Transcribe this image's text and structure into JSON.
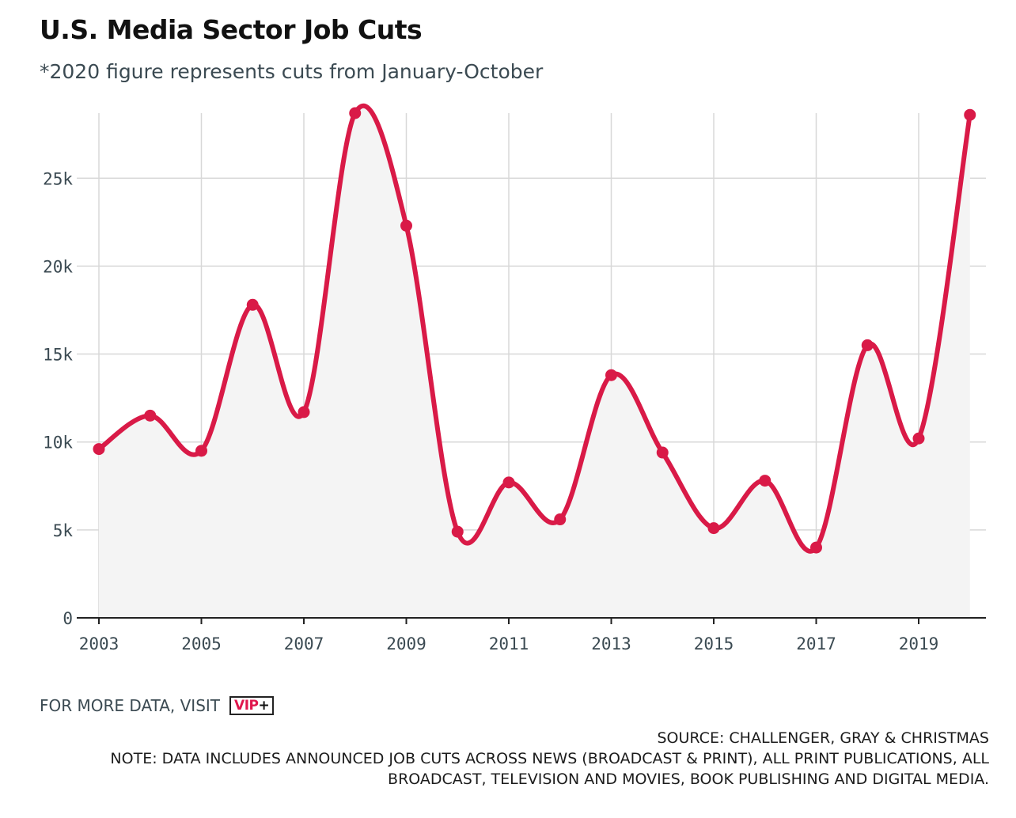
{
  "title": "U.S. Media Sector Job Cuts",
  "subtitle": "*2020 figure represents cuts from January-October",
  "more_data_label": "FOR MORE DATA, VISIT",
  "logo": {
    "text": "VIP",
    "plus": "+"
  },
  "source": "SOURCE: CHALLENGER, GRAY & CHRISTMAS",
  "note_line1": "NOTE: DATA INCLUDES ANNOUNCED JOB CUTS ACROSS NEWS (BROADCAST & PRINT), ALL PRINT PUBLICATIONS, ALL",
  "note_line2": "BROADCAST, TELEVISION AND MOVIES, BOOK PUBLISHING AND DIGITAL MEDIA.",
  "colors": {
    "line": "#d91a47",
    "area": "#f4f4f4",
    "grid": "#d8d8d8",
    "axis": "#222222"
  },
  "chart_data": {
    "type": "line",
    "x": [
      2003,
      2004,
      2005,
      2006,
      2007,
      2008,
      2009,
      2010,
      2011,
      2012,
      2013,
      2014,
      2015,
      2016,
      2017,
      2018,
      2019,
      2020
    ],
    "series": [
      {
        "values": [
          9600,
          11500,
          9500,
          17800,
          11700,
          28700,
          22300,
          4900,
          7700,
          5600,
          13800,
          9400,
          5100,
          7800,
          4000,
          15500,
          10200,
          28600
        ]
      }
    ],
    "xlim": [
      2003,
      2020.3
    ],
    "ylim": [
      0,
      28700
    ],
    "x_ticks": [
      2003,
      2005,
      2007,
      2009,
      2011,
      2013,
      2015,
      2017,
      2019
    ],
    "x_tick_labels": [
      "2003",
      "2005",
      "2007",
      "2009",
      "2011",
      "2013",
      "2015",
      "2017",
      "2019"
    ],
    "y_ticks": [
      0,
      5000,
      10000,
      15000,
      20000,
      25000
    ],
    "y_tick_labels": [
      "0",
      "5k",
      "10k",
      "15k",
      "20k",
      "25k"
    ],
    "x_gridlines": [
      2003,
      2005,
      2007,
      2009,
      2011,
      2013,
      2015,
      2017,
      2019
    ],
    "grid": true,
    "area_fill": true,
    "smooth": true,
    "markers": true
  }
}
